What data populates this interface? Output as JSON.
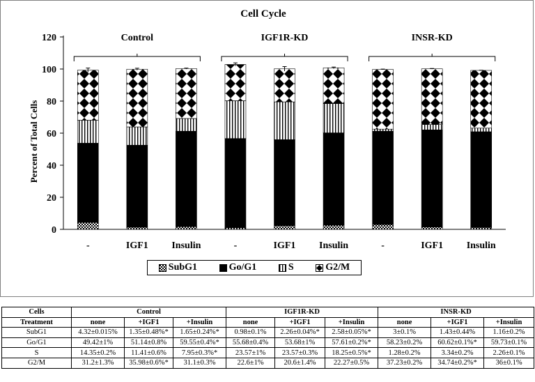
{
  "chart_data": {
    "type": "bar",
    "stacked": true,
    "title": "Cell Cycle",
    "ylabel": "Percent of Total Cells",
    "xlabel": "",
    "ylim": [
      0,
      120
    ],
    "yticks": [
      0,
      20,
      40,
      60,
      80,
      100,
      120
    ],
    "categories": [
      "-",
      "IGF1",
      "Insulin",
      "-",
      "IGF1",
      "Insulin",
      "-",
      "IGF1",
      "Insulin"
    ],
    "groups": [
      {
        "label": "Control",
        "bars": [
          0,
          1,
          2
        ]
      },
      {
        "label": "IGF1R-KD",
        "bars": [
          3,
          4,
          5
        ]
      },
      {
        "label": "INSR-KD",
        "bars": [
          6,
          7,
          8
        ]
      }
    ],
    "series": [
      {
        "name": "SubG1",
        "pattern": "checker",
        "values": [
          4.32,
          1.35,
          1.65,
          0.98,
          2.26,
          2.58,
          3,
          1.43,
          1.16
        ]
      },
      {
        "name": "Go/G1",
        "pattern": "solid",
        "values": [
          49.42,
          51.14,
          59.55,
          55.68,
          53.68,
          57.61,
          58.23,
          60.62,
          59.73
        ]
      },
      {
        "name": "S",
        "pattern": "vertical-lines",
        "values": [
          14.35,
          11.41,
          7.95,
          23.57,
          23.57,
          18.25,
          1.28,
          3.34,
          2.26
        ]
      },
      {
        "name": "G2/M",
        "pattern": "diamonds",
        "values": [
          31.2,
          35.98,
          31.1,
          22.6,
          20.6,
          22.27,
          37.23,
          34.74,
          36
        ]
      }
    ],
    "error_bars": [
      1.3,
      0.6,
      0.3,
      1,
      1.4,
      0.5,
      0.2,
      0.2,
      0.1
    ],
    "legend_position": "bottom"
  },
  "table": {
    "header1": [
      "Cells",
      "Control",
      "IGF1R-KD",
      "INSR-KD"
    ],
    "header2": [
      "Treatment",
      "none",
      "+IGF1",
      "+Insulin",
      "none",
      "+IGF1",
      "+Insulin",
      "none",
      "+IGF1",
      "+Insulin"
    ],
    "rows": [
      [
        "SubG1",
        "4.32±0.015%",
        "1.35±0.48%*",
        "1.65±0.24%*",
        "0.98±0.1%",
        "2.26±0.04%*",
        "2.58±0.05%*",
        "3±0.1%",
        "1.43±0.44%",
        "1.16±0.2%"
      ],
      [
        "Go/G1",
        "49.42±1%",
        "51.14±0.8%",
        "59.55±0.4%*",
        "55.68±0.4%",
        "53.68±1%",
        "57.61±0.2%*",
        "58.23±0.2%",
        "60.62±0.1%*",
        "59.73±0.1%"
      ],
      [
        "S",
        "14.35±0.2%",
        "11.41±0.6%",
        "7.95±0.3%*",
        "23.57±1%",
        "23.57±0.3%",
        "18.25±0.5%*",
        "1.28±0.2%",
        "3.34±0.2%",
        "2.26±0.1%"
      ],
      [
        "G2/M",
        "31.2±1.3%",
        "35.98±0.6%*",
        "31.1±0.3%",
        "22.6±1%",
        "20.6±1.4%",
        "22.27±0.5%",
        "37.23±0.2%",
        "34.74±0.2%*",
        "36±0.1%"
      ]
    ]
  }
}
